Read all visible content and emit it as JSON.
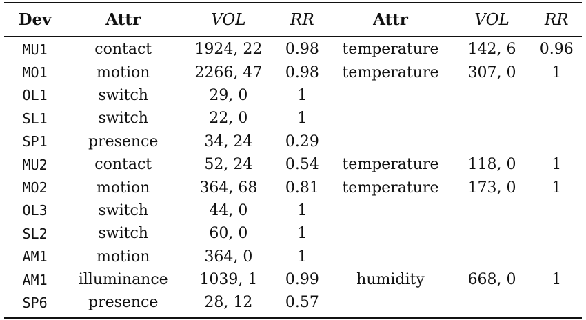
{
  "table": {
    "headers": [
      "Dev",
      "Attr",
      "VOL",
      "RR",
      "Attr",
      "VOL",
      "RR"
    ],
    "rows": [
      [
        "MU1",
        "contact",
        "1924, 22",
        "0.98",
        "temperature",
        "142, 6",
        "0.96"
      ],
      [
        "MO1",
        "motion",
        "2266, 47",
        "0.98",
        "temperature",
        "307, 0",
        "1"
      ],
      [
        "OL1",
        "switch",
        "29, 0",
        "1",
        "",
        "",
        ""
      ],
      [
        "SL1",
        "switch",
        "22, 0",
        "1",
        "",
        "",
        ""
      ],
      [
        "SP1",
        "presence",
        "34, 24",
        "0.29",
        "",
        "",
        ""
      ],
      [
        "MU2",
        "contact",
        "52, 24",
        "0.54",
        "temperature",
        "118, 0",
        "1"
      ],
      [
        "MO2",
        "motion",
        "364, 68",
        "0.81",
        "temperature",
        "173, 0",
        "1"
      ],
      [
        "OL3",
        "switch",
        "44, 0",
        "1",
        "",
        "",
        ""
      ],
      [
        "SL2",
        "switch",
        "60, 0",
        "1",
        "",
        "",
        ""
      ],
      [
        "AM1",
        "motion",
        "364, 0",
        "1",
        "",
        "",
        ""
      ],
      [
        "AM1",
        "illuminance",
        "1039, 1",
        "0.99",
        "humidity",
        "668, 0",
        "1"
      ],
      [
        "SP6",
        "presence",
        "28, 12",
        "0.57",
        "",
        "",
        ""
      ]
    ]
  }
}
